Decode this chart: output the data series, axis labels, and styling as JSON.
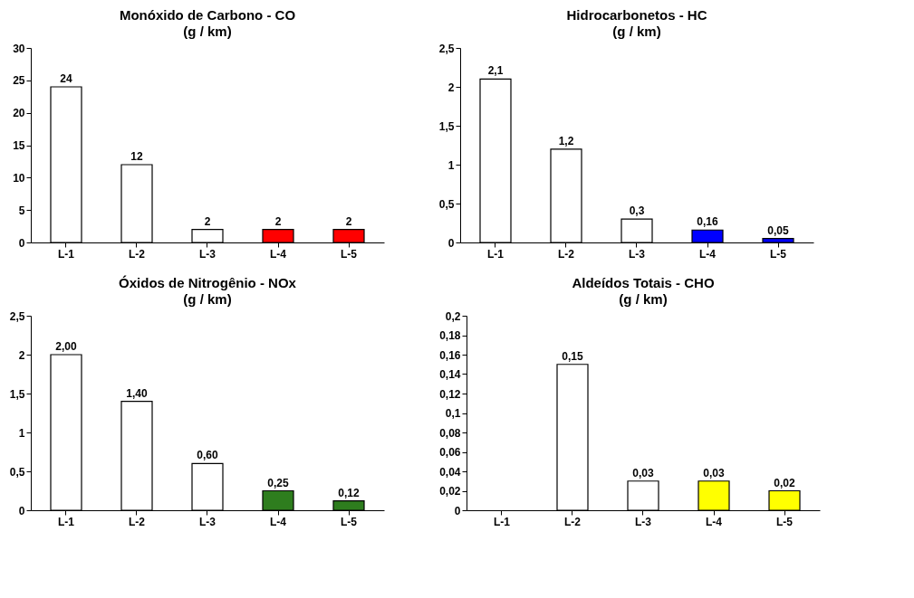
{
  "chart_data": [
    {
      "type": "bar",
      "title": "Monóxido de Carbono - CO",
      "subtitle": "(g / km)",
      "categories": [
        "L-1",
        "L-2",
        "L-3",
        "L-4",
        "L-5"
      ],
      "values": [
        24,
        12,
        2,
        2,
        2
      ],
      "colors": [
        "#ffffff",
        "#ffffff",
        "#ffffff",
        "#ff0000",
        "#ff0000"
      ],
      "ylim": [
        0,
        30
      ],
      "yticks": [
        0,
        5,
        10,
        15,
        20,
        25,
        30
      ],
      "data_labels": true,
      "grid": false
    },
    {
      "type": "bar",
      "title": "Hidrocarbonetos - HC",
      "subtitle": "(g / km)",
      "categories": [
        "L-1",
        "L-2",
        "L-3",
        "L-4",
        "L-5"
      ],
      "values": [
        2.1,
        1.2,
        0.3,
        0.16,
        0.05
      ],
      "colors": [
        "#ffffff",
        "#ffffff",
        "#ffffff",
        "#0000ff",
        "#0000ff"
      ],
      "ylim": [
        0,
        2.5
      ],
      "yticks": [
        0,
        {
          "value": 0.5,
          "label": "0,5"
        },
        1,
        {
          "value": 1.5,
          "label": "1,5"
        },
        2,
        {
          "value": 2.5,
          "label": "2,5"
        }
      ],
      "value_labels": [
        "2,1",
        "1,2",
        "0,3",
        "0,16",
        "0,05"
      ],
      "grid": false
    },
    {
      "type": "bar",
      "title": "Óxidos de Nitrogênio - NOx",
      "subtitle": "(g / km)",
      "categories": [
        "L-1",
        "L-2",
        "L-3",
        "L-4",
        "L-5"
      ],
      "values": [
        2.0,
        1.4,
        0.6,
        0.25,
        0.12
      ],
      "colors": [
        "#ffffff",
        "#ffffff",
        "#ffffff",
        "#2e7d1e",
        "#2e7d1e"
      ],
      "ylim": [
        0,
        2.5
      ],
      "yticks": [
        0,
        {
          "value": 0.5,
          "label": "0,5"
        },
        1,
        {
          "value": 1.5,
          "label": "1,5"
        },
        2,
        {
          "value": 2.5,
          "label": "2,5"
        }
      ],
      "value_labels": [
        "2,00",
        "1,40",
        "0,60",
        "0,25",
        "0,12"
      ],
      "grid": false
    },
    {
      "type": "bar",
      "title": "Aldeídos Totais - CHO",
      "subtitle": "(g / km)",
      "categories": [
        "L-1",
        "L-2",
        "L-3",
        "L-4",
        "L-5"
      ],
      "values": [
        null,
        0.15,
        0.03,
        0.03,
        0.02
      ],
      "colors": [
        "#ffffff",
        "#ffffff",
        "#ffffff",
        "#ffff00",
        "#ffff00"
      ],
      "ylim": [
        0,
        0.2
      ],
      "yticks": [
        0,
        {
          "value": 0.02,
          "label": "0,02"
        },
        {
          "value": 0.04,
          "label": "0,04"
        },
        {
          "value": 0.06,
          "label": "0,06"
        },
        {
          "value": 0.08,
          "label": "0,08"
        },
        {
          "value": 0.1,
          "label": "0,1"
        },
        {
          "value": 0.12,
          "label": "0,12"
        },
        {
          "value": 0.14,
          "label": "0,14"
        },
        {
          "value": 0.16,
          "label": "0,16"
        },
        {
          "value": 0.18,
          "label": "0,18"
        },
        {
          "value": 0.2,
          "label": "0,2"
        }
      ],
      "value_labels": [
        null,
        "0,15",
        "0,03",
        "0,03",
        "0,02"
      ],
      "grid": false
    }
  ]
}
